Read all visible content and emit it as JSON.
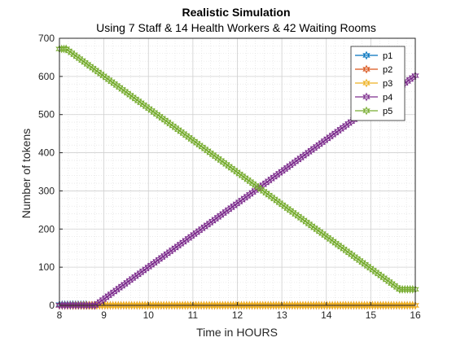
{
  "chart_data": {
    "type": "line",
    "title": "Realistic Simulation",
    "subtitle": "Using 7 Staff & 14 Health Workers & 42 Waiting Rooms",
    "xlabel": "Time in HOURS",
    "ylabel": "Number of tokens",
    "xlim": [
      8,
      16
    ],
    "ylim": [
      0,
      700
    ],
    "xticks": [
      8,
      9,
      10,
      11,
      12,
      13,
      14,
      15,
      16
    ],
    "yticks": [
      0,
      100,
      200,
      300,
      400,
      500,
      600,
      700
    ],
    "grid": true,
    "minor_grid": true,
    "legend_position": "top-right",
    "series": [
      {
        "name": "p1",
        "color": "#0072BD",
        "marker": "hexagram",
        "points": [
          [
            8.0,
            2
          ],
          [
            8.3,
            2
          ],
          [
            8.6,
            2
          ]
        ]
      },
      {
        "name": "p2",
        "color": "#D95319",
        "marker": "hexagram",
        "points": [
          [
            8.0,
            0
          ],
          [
            16.0,
            0
          ]
        ]
      },
      {
        "name": "p3",
        "color": "#EDB120",
        "marker": "hexagram",
        "points": [
          [
            8.0,
            0
          ],
          [
            16.0,
            0
          ]
        ]
      },
      {
        "name": "p4",
        "color": "#7E2F8E",
        "marker": "hexagram",
        "points": [
          [
            8.0,
            0
          ],
          [
            8.8,
            0
          ],
          [
            16.0,
            602
          ]
        ]
      },
      {
        "name": "p5",
        "color": "#77AC30",
        "marker": "hexagram",
        "points": [
          [
            8.0,
            672
          ],
          [
            8.15,
            672
          ],
          [
            15.65,
            42
          ],
          [
            16.0,
            42
          ]
        ]
      }
    ]
  }
}
